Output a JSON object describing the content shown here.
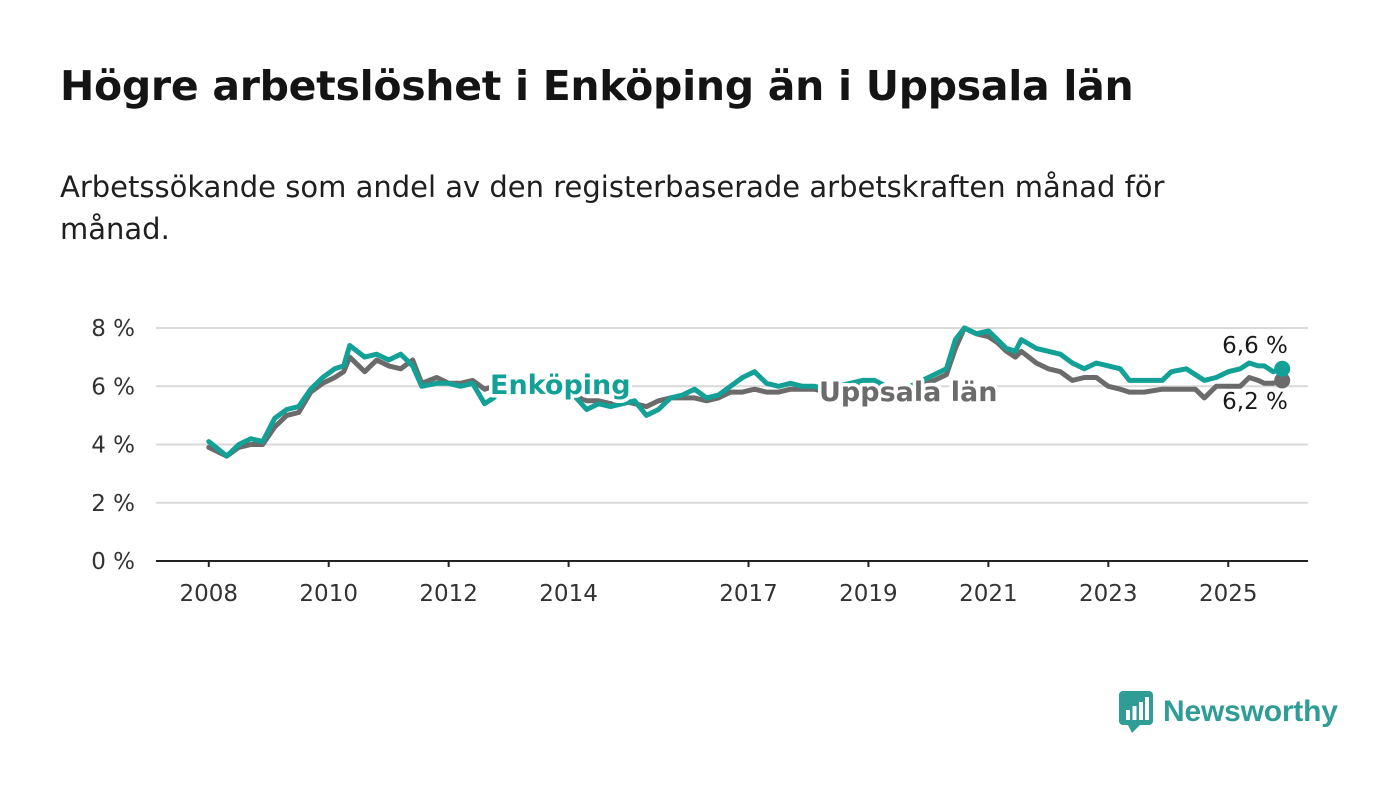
{
  "title": "Högre arbetslöshet i Enköping än i Uppsala län",
  "subtitle": "Arbetssökande som andel av den registerbaserade arbetskraften månad för månad.",
  "logo_text": "Newsworthy",
  "colors": {
    "enkoping": "#13a096",
    "uppsala": "#6b6b6b",
    "grid": "#d9d9d9",
    "axis": "#222222",
    "logo": "#2f9c96"
  },
  "chart_data": {
    "type": "line",
    "title": "Högre arbetslöshet i Enköping än i Uppsala län",
    "xlabel": "",
    "ylabel": "",
    "ylim": [
      0,
      8
    ],
    "xlim": [
      2007.12,
      2026.33
    ],
    "grid": true,
    "y_ticks": [
      {
        "value": 0,
        "label": "0 %"
      },
      {
        "value": 2,
        "label": "2 %"
      },
      {
        "value": 4,
        "label": "4 %"
      },
      {
        "value": 6,
        "label": "6 %"
      },
      {
        "value": 8,
        "label": "8 %"
      }
    ],
    "x_ticks": [
      {
        "value": 2008,
        "label": "2008"
      },
      {
        "value": 2010,
        "label": "2010"
      },
      {
        "value": 2012,
        "label": "2012"
      },
      {
        "value": 2014,
        "label": "2014"
      },
      {
        "value": 2017,
        "label": "2017"
      },
      {
        "value": 2019,
        "label": "2019"
      },
      {
        "value": 2021,
        "label": "2021"
      },
      {
        "value": 2023,
        "label": "2023"
      },
      {
        "value": 2025,
        "label": "2025"
      }
    ],
    "series": [
      {
        "name": "Enköping",
        "color": "#13a096",
        "end_label": "6,6 %",
        "points": [
          [
            2008.0,
            4.1
          ],
          [
            2008.3,
            3.6
          ],
          [
            2008.5,
            4.0
          ],
          [
            2008.7,
            4.2
          ],
          [
            2008.9,
            4.1
          ],
          [
            2009.1,
            4.9
          ],
          [
            2009.3,
            5.2
          ],
          [
            2009.5,
            5.3
          ],
          [
            2009.7,
            5.9
          ],
          [
            2009.9,
            6.3
          ],
          [
            2010.1,
            6.6
          ],
          [
            2010.25,
            6.7
          ],
          [
            2010.35,
            7.4
          ],
          [
            2010.6,
            7.0
          ],
          [
            2010.8,
            7.1
          ],
          [
            2011.0,
            6.9
          ],
          [
            2011.2,
            7.1
          ],
          [
            2011.4,
            6.7
          ],
          [
            2011.55,
            6.0
          ],
          [
            2011.8,
            6.1
          ],
          [
            2012.0,
            6.1
          ],
          [
            2012.2,
            6.0
          ],
          [
            2012.4,
            6.1
          ],
          [
            2012.6,
            5.4
          ],
          [
            2012.75,
            5.6
          ],
          [
            2012.85,
            5.9
          ],
          [
            2013.1,
            6.2
          ],
          [
            2013.4,
            6.1
          ],
          [
            2013.7,
            6.0
          ],
          [
            2014.0,
            5.9
          ],
          [
            2014.3,
            5.2
          ],
          [
            2014.5,
            5.4
          ],
          [
            2014.7,
            5.3
          ],
          [
            2014.9,
            5.4
          ],
          [
            2015.1,
            5.5
          ],
          [
            2015.3,
            5.0
          ],
          [
            2015.5,
            5.2
          ],
          [
            2015.7,
            5.6
          ],
          [
            2015.9,
            5.7
          ],
          [
            2016.1,
            5.9
          ],
          [
            2016.3,
            5.6
          ],
          [
            2016.5,
            5.7
          ],
          [
            2016.7,
            6.0
          ],
          [
            2016.9,
            6.3
          ],
          [
            2017.1,
            6.5
          ],
          [
            2017.3,
            6.1
          ],
          [
            2017.5,
            6.0
          ],
          [
            2017.7,
            6.1
          ],
          [
            2017.9,
            6.0
          ],
          [
            2018.1,
            6.0
          ],
          [
            2018.3,
            5.9
          ],
          [
            2018.5,
            6.0
          ],
          [
            2018.7,
            6.1
          ],
          [
            2018.9,
            6.2
          ],
          [
            2019.1,
            6.2
          ],
          [
            2019.3,
            6.0
          ],
          [
            2019.5,
            5.8
          ],
          [
            2019.7,
            6.0
          ],
          [
            2019.9,
            6.2
          ],
          [
            2020.1,
            6.4
          ],
          [
            2020.3,
            6.6
          ],
          [
            2020.45,
            7.6
          ],
          [
            2020.6,
            8.0
          ],
          [
            2020.8,
            7.8
          ],
          [
            2021.0,
            7.9
          ],
          [
            2021.15,
            7.6
          ],
          [
            2021.3,
            7.3
          ],
          [
            2021.45,
            7.2
          ],
          [
            2021.55,
            7.6
          ],
          [
            2021.8,
            7.3
          ],
          [
            2022.0,
            7.2
          ],
          [
            2022.2,
            7.1
          ],
          [
            2022.4,
            6.8
          ],
          [
            2022.6,
            6.6
          ],
          [
            2022.8,
            6.8
          ],
          [
            2023.0,
            6.7
          ],
          [
            2023.2,
            6.6
          ],
          [
            2023.35,
            6.2
          ],
          [
            2023.6,
            6.2
          ],
          [
            2023.9,
            6.2
          ],
          [
            2024.05,
            6.5
          ],
          [
            2024.3,
            6.6
          ],
          [
            2024.45,
            6.4
          ],
          [
            2024.6,
            6.2
          ],
          [
            2024.8,
            6.3
          ],
          [
            2025.0,
            6.5
          ],
          [
            2025.2,
            6.6
          ],
          [
            2025.35,
            6.8
          ],
          [
            2025.5,
            6.7
          ],
          [
            2025.6,
            6.7
          ],
          [
            2025.75,
            6.5
          ],
          [
            2025.9,
            6.6
          ]
        ]
      },
      {
        "name": "Uppsala län",
        "color": "#6b6b6b",
        "end_label": "6,2 %",
        "points": [
          [
            2008.0,
            3.9
          ],
          [
            2008.3,
            3.6
          ],
          [
            2008.5,
            3.9
          ],
          [
            2008.7,
            4.0
          ],
          [
            2008.9,
            4.0
          ],
          [
            2009.1,
            4.6
          ],
          [
            2009.3,
            5.0
          ],
          [
            2009.5,
            5.1
          ],
          [
            2009.7,
            5.8
          ],
          [
            2009.9,
            6.1
          ],
          [
            2010.1,
            6.3
          ],
          [
            2010.25,
            6.5
          ],
          [
            2010.35,
            7.0
          ],
          [
            2010.6,
            6.5
          ],
          [
            2010.8,
            6.9
          ],
          [
            2011.0,
            6.7
          ],
          [
            2011.2,
            6.6
          ],
          [
            2011.4,
            6.9
          ],
          [
            2011.55,
            6.1
          ],
          [
            2011.8,
            6.3
          ],
          [
            2012.0,
            6.1
          ],
          [
            2012.2,
            6.1
          ],
          [
            2012.4,
            6.2
          ],
          [
            2012.6,
            5.9
          ],
          [
            2012.75,
            6.0
          ],
          [
            2012.85,
            6.2
          ],
          [
            2013.1,
            6.1
          ],
          [
            2013.4,
            6.0
          ],
          [
            2013.7,
            5.9
          ],
          [
            2014.0,
            5.8
          ],
          [
            2014.3,
            5.5
          ],
          [
            2014.5,
            5.5
          ],
          [
            2014.7,
            5.4
          ],
          [
            2014.9,
            5.5
          ],
          [
            2015.1,
            5.4
          ],
          [
            2015.3,
            5.3
          ],
          [
            2015.5,
            5.5
          ],
          [
            2015.7,
            5.6
          ],
          [
            2015.9,
            5.6
          ],
          [
            2016.1,
            5.6
          ],
          [
            2016.3,
            5.5
          ],
          [
            2016.5,
            5.6
          ],
          [
            2016.7,
            5.8
          ],
          [
            2016.9,
            5.8
          ],
          [
            2017.1,
            5.9
          ],
          [
            2017.3,
            5.8
          ],
          [
            2017.5,
            5.8
          ],
          [
            2017.7,
            5.9
          ],
          [
            2017.9,
            5.9
          ],
          [
            2018.1,
            5.9
          ],
          [
            2018.3,
            5.8
          ],
          [
            2018.5,
            5.9
          ],
          [
            2018.7,
            6.0
          ],
          [
            2018.9,
            6.0
          ],
          [
            2019.1,
            6.0
          ],
          [
            2019.3,
            5.9
          ],
          [
            2019.5,
            5.8
          ],
          [
            2019.7,
            5.9
          ],
          [
            2019.9,
            6.1
          ],
          [
            2020.1,
            6.2
          ],
          [
            2020.3,
            6.4
          ],
          [
            2020.45,
            7.3
          ],
          [
            2020.6,
            8.0
          ],
          [
            2020.8,
            7.8
          ],
          [
            2021.0,
            7.7
          ],
          [
            2021.15,
            7.5
          ],
          [
            2021.3,
            7.2
          ],
          [
            2021.45,
            7.0
          ],
          [
            2021.55,
            7.2
          ],
          [
            2021.8,
            6.8
          ],
          [
            2022.0,
            6.6
          ],
          [
            2022.2,
            6.5
          ],
          [
            2022.4,
            6.2
          ],
          [
            2022.6,
            6.3
          ],
          [
            2022.8,
            6.3
          ],
          [
            2023.0,
            6.0
          ],
          [
            2023.2,
            5.9
          ],
          [
            2023.35,
            5.8
          ],
          [
            2023.6,
            5.8
          ],
          [
            2023.9,
            5.9
          ],
          [
            2024.05,
            5.9
          ],
          [
            2024.3,
            5.9
          ],
          [
            2024.45,
            5.9
          ],
          [
            2024.6,
            5.6
          ],
          [
            2024.8,
            6.0
          ],
          [
            2025.0,
            6.0
          ],
          [
            2025.2,
            6.0
          ],
          [
            2025.35,
            6.3
          ],
          [
            2025.5,
            6.2
          ],
          [
            2025.6,
            6.1
          ],
          [
            2025.75,
            6.1
          ],
          [
            2025.9,
            6.2
          ]
        ]
      }
    ],
    "annotations": [
      {
        "text": "Enköping",
        "series": "Enköping"
      },
      {
        "text": "Uppsala län",
        "series": "Uppsala län"
      }
    ]
  }
}
